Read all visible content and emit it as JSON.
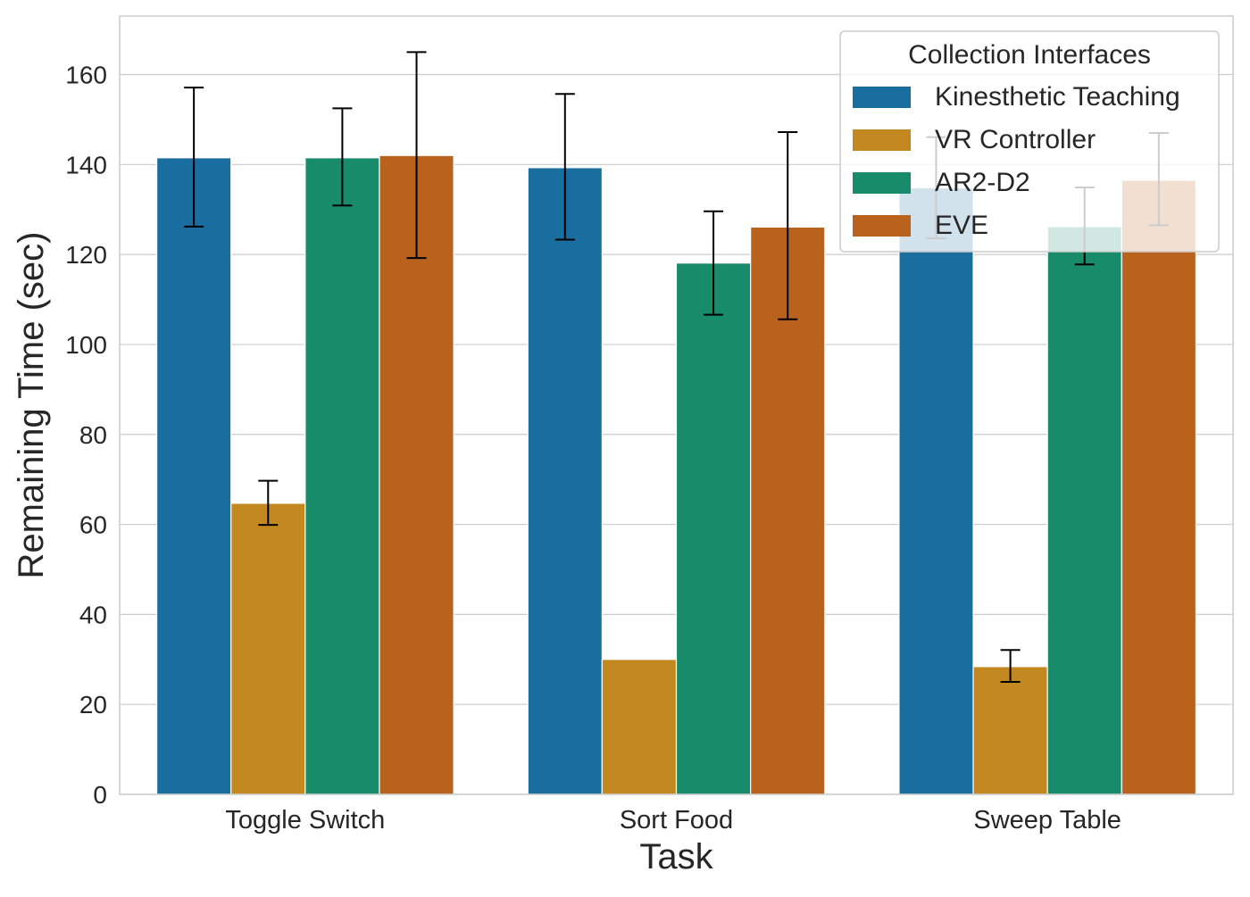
{
  "chart_data": {
    "type": "bar",
    "title": "",
    "xlabel": "Task",
    "ylabel": "Remaining Time (sec)",
    "categories": [
      "Toggle Switch",
      "Sort Food",
      "Sweep Table"
    ],
    "ylim": [
      0,
      173
    ],
    "yticks": [
      0,
      20,
      40,
      60,
      80,
      100,
      120,
      140,
      160
    ],
    "grid": true,
    "legend": {
      "title": "Collection Interfaces",
      "placement": "top-right"
    },
    "series": [
      {
        "name": "Kinesthetic Teaching",
        "color": "#1a6e9f",
        "values": [
          141.5,
          139.3,
          134.8
        ],
        "err_low": [
          126.2,
          123.3,
          123.6
        ],
        "err_high": [
          157.1,
          155.7,
          146.1
        ]
      },
      {
        "name": "VR Controller",
        "color": "#c38820",
        "values": [
          64.7,
          30.0,
          28.4
        ],
        "err_low": [
          59.9,
          null,
          25.0
        ],
        "err_high": [
          69.7,
          null,
          32.1
        ]
      },
      {
        "name": "AR2-D2",
        "color": "#178b6a",
        "values": [
          141.5,
          118.1,
          126.2
        ],
        "err_low": [
          130.9,
          106.6,
          117.8
        ],
        "err_high": [
          152.5,
          129.6,
          134.9
        ]
      },
      {
        "name": "EVE",
        "color": "#b8621e",
        "values": [
          142.0,
          126.1,
          136.5
        ],
        "err_low": [
          119.2,
          105.6,
          126.5
        ],
        "err_high": [
          165.0,
          147.2,
          147.0
        ]
      }
    ]
  }
}
